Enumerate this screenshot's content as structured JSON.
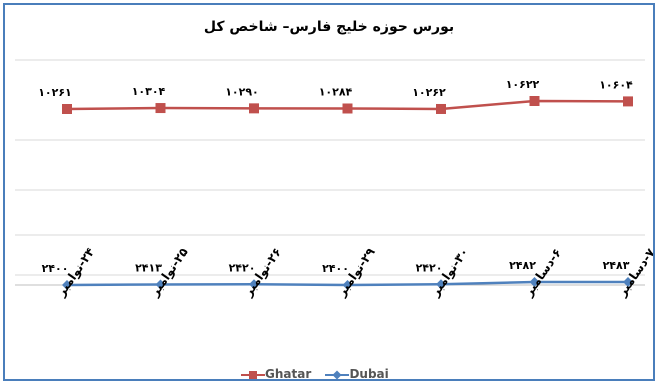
{
  "chart_data": {
    "type": "line",
    "title": "بورس حوزه خلیج فارس– شاخص کل",
    "categories": [
      "۲۴-نوامبر",
      "۲۵-نوامبر",
      "۲۶-نوامبر",
      "۲۹-نوامبر",
      "۳۰-نوامبر",
      "۶-دسامبر",
      "۷-دسامبر"
    ],
    "series": [
      {
        "name": "Ghatar",
        "color": "#c0504d",
        "marker": "square",
        "values": [
          10261,
          10304,
          10290,
          10284,
          10262,
          10622,
          10604
        ],
        "labels": [
          "۱۰۲۶۱",
          "۱۰۳۰۴",
          "۱۰۲۹۰",
          "۱۰۲۸۴",
          "۱۰۲۶۲",
          "۱۰۶۲۲",
          "۱۰۶۰۴"
        ]
      },
      {
        "name": "Dubai",
        "color": "#4f81bd",
        "marker": "diamond",
        "values": [
          2400,
          2413,
          2420,
          2400,
          2420,
          2482,
          2483
        ],
        "labels": [
          "۲۴۰۰",
          "۲۴۱۳",
          "۲۴۲۰",
          "۲۴۰۰",
          "۲۴۲۰",
          "۲۴۸۲",
          "۲۴۸۳"
        ]
      }
    ],
    "grid": true,
    "legend": "bottom"
  }
}
